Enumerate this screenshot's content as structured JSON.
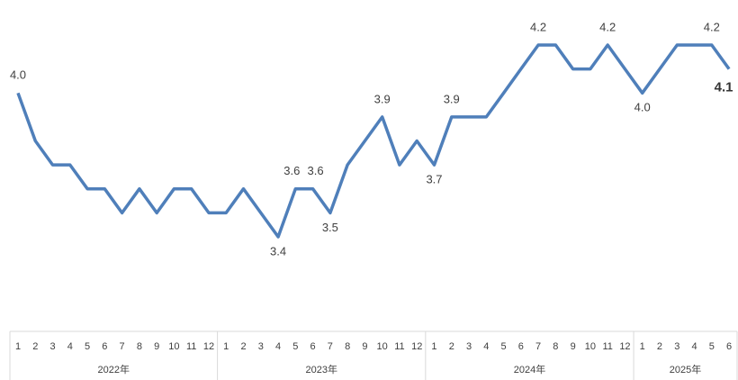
{
  "chart_data": {
    "type": "line",
    "categories": [
      "1",
      "2",
      "3",
      "4",
      "5",
      "6",
      "7",
      "8",
      "9",
      "10",
      "11",
      "12",
      "1",
      "2",
      "3",
      "4",
      "5",
      "6",
      "7",
      "8",
      "9",
      "10",
      "11",
      "12",
      "1",
      "2",
      "3",
      "4",
      "5",
      "6",
      "7",
      "8",
      "9",
      "10",
      "11",
      "12",
      "1",
      "2",
      "3",
      "4",
      "5",
      "6"
    ],
    "groups": [
      "2022年",
      "2023年",
      "2024年",
      "2025年"
    ],
    "series": [
      {
        "color": "#4f7fba",
        "values": [
          4.0,
          3.8,
          3.7,
          3.7,
          3.6,
          3.6,
          3.5,
          3.6,
          3.5,
          3.6,
          3.6,
          3.5,
          3.5,
          3.6,
          3.5,
          3.4,
          3.6,
          3.6,
          3.5,
          3.7,
          3.8,
          3.9,
          3.7,
          3.8,
          3.7,
          3.9,
          3.9,
          3.9,
          4.0,
          4.1,
          4.2,
          4.2,
          4.1,
          4.1,
          4.2,
          4.1,
          4.0,
          4.1,
          4.2,
          4.2,
          4.2,
          4.1
        ],
        "value_labels": [
          "4.0",
          null,
          null,
          null,
          null,
          null,
          null,
          null,
          null,
          null,
          null,
          null,
          null,
          null,
          null,
          "3.4",
          "3.6",
          "3.6",
          "3.5",
          null,
          null,
          "3.9",
          null,
          null,
          "3.7",
          "3.9",
          null,
          null,
          null,
          null,
          "4.2",
          null,
          null,
          null,
          "4.2",
          null,
          "4.0",
          null,
          null,
          null,
          "4.2",
          "4.1"
        ]
      }
    ]
  }
}
